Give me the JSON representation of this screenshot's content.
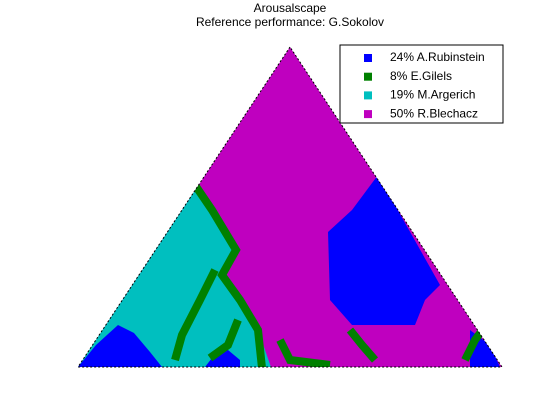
{
  "chart_data": {
    "type": "ternary-map",
    "title": "Arousalscape",
    "subtitle": "Reference performance: G.Sokolov",
    "series": [
      {
        "name": "24% A.Rubinstein",
        "color": "#0000ff"
      },
      {
        "name": " 8% E.Gilels",
        "color": "#008000"
      },
      {
        "name": "19% M.Argerich",
        "color": "#00bfbf"
      },
      {
        "name": "50% R.Blechacz",
        "color": "#bf00bf"
      }
    ]
  }
}
